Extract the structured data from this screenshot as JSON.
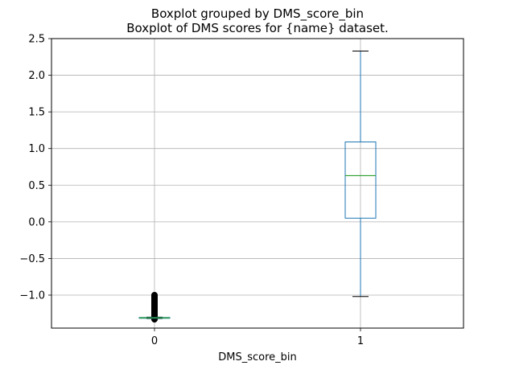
{
  "chart_data": {
    "type": "boxplot",
    "suptitle": "Boxplot grouped by DMS_score_bin",
    "title": "Boxplot of DMS scores for {name} dataset.",
    "xlabel": "DMS_score_bin",
    "ylabel": "",
    "categories": [
      "0",
      "1"
    ],
    "ylim": [
      -1.45,
      2.5
    ],
    "yticks": [
      -1.0,
      -0.5,
      0.0,
      0.5,
      1.0,
      1.5,
      2.0,
      2.5
    ],
    "ytick_labels": [
      "−1.0",
      "−0.5",
      "0.0",
      "0.5",
      "1.0",
      "1.5",
      "2.0",
      "2.5"
    ],
    "grid": true,
    "boxes": [
      {
        "category": "0",
        "whislo": -1.32,
        "q1": -1.315,
        "median": -1.31,
        "q3": -1.305,
        "whishi": -1.3,
        "fliers_range": [
          -1.33,
          -1.0
        ]
      },
      {
        "category": "1",
        "whislo": -1.02,
        "q1": 0.05,
        "median": 0.63,
        "q3": 1.09,
        "whishi": 2.33,
        "fliers_range": null
      }
    ],
    "colors": {
      "box": "#1f77b4",
      "median": "#2ca02c",
      "whisker": "#1f77b4",
      "cap": "#000000",
      "flier": "#000000",
      "grid": "#b0b0b0"
    }
  }
}
